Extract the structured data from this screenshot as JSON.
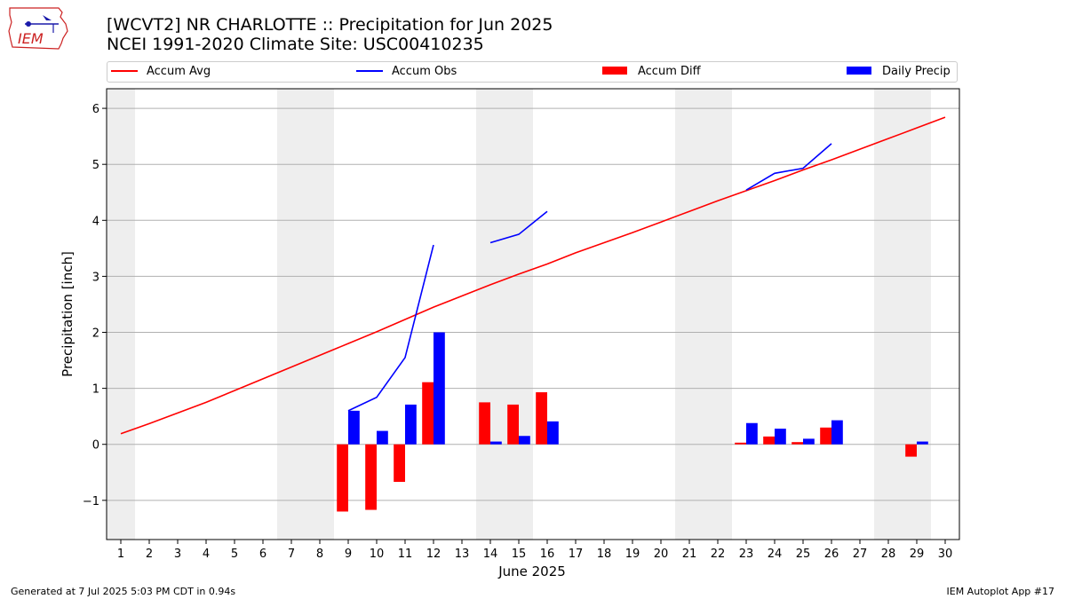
{
  "header": {
    "title_line1": "[WCVT2] NR CHARLOTTE :: Precipitation for Jun 2025",
    "title_line2": "NCEI 1991-2020 Climate Site: USC00410235",
    "logo_text": "IEM"
  },
  "footer": {
    "generated": "Generated at 7 Jul 2025 5:03 PM CDT in 0.94s",
    "app": "IEM Autoplot App #17"
  },
  "colors": {
    "avg": "#ff0000",
    "obs": "#0000ff",
    "diff": "#ff0000",
    "daily": "#0000ff",
    "weekend_shade": "#eeeeee",
    "grid": "#b0b0b0"
  },
  "chart_data": {
    "type": "bar",
    "xlabel": "June 2025",
    "ylabel": "Precipitation [inch]",
    "ylim": [
      -1.7,
      6.35
    ],
    "yticks": [
      -1,
      0,
      1,
      2,
      3,
      4,
      5,
      6
    ],
    "ytick_labels": [
      "−1",
      "0",
      "1",
      "2",
      "3",
      "4",
      "5",
      "6"
    ],
    "xlim": [
      0.5,
      30.5
    ],
    "days": [
      1,
      2,
      3,
      4,
      5,
      6,
      7,
      8,
      9,
      10,
      11,
      12,
      13,
      14,
      15,
      16,
      17,
      18,
      19,
      20,
      21,
      22,
      23,
      24,
      25,
      26,
      27,
      28,
      29,
      30
    ],
    "grid": true,
    "legend_position": "top",
    "weekend_spans": [
      [
        0.5,
        1.5
      ],
      [
        6.5,
        8.5
      ],
      [
        13.5,
        15.5
      ],
      [
        20.5,
        22.5
      ],
      [
        27.5,
        29.5
      ]
    ],
    "series": [
      {
        "name": "Accum Avg",
        "kind": "line",
        "x": [
          1,
          2,
          3,
          4,
          5,
          6,
          7,
          8,
          9,
          10,
          11,
          12,
          13,
          14,
          15,
          16,
          17,
          18,
          19,
          20,
          21,
          22,
          23,
          24,
          25,
          26,
          27,
          28,
          29,
          30
        ],
        "values": [
          0.19,
          0.37,
          0.56,
          0.75,
          0.96,
          1.17,
          1.38,
          1.59,
          1.8,
          2.01,
          2.23,
          2.45,
          2.65,
          2.85,
          3.04,
          3.22,
          3.42,
          3.6,
          3.78,
          3.97,
          4.16,
          4.35,
          4.53,
          4.71,
          4.9,
          5.08,
          5.27,
          5.46,
          5.65,
          5.84
        ]
      },
      {
        "name": "Accum Obs",
        "kind": "line",
        "segments": [
          {
            "x": [
              9,
              10,
              11,
              12
            ],
            "values": [
              0.6,
              0.84,
              1.55,
              3.56
            ]
          },
          {
            "x": [
              14,
              15,
              16
            ],
            "values": [
              3.6,
              3.75,
              4.16
            ]
          },
          {
            "x": [
              23,
              24,
              25,
              26
            ],
            "values": [
              4.54,
              4.84,
              4.93,
              5.37
            ]
          }
        ]
      },
      {
        "name": "Accum Diff",
        "kind": "bar",
        "x": [
          9,
          10,
          11,
          12,
          14,
          15,
          16,
          23,
          24,
          25,
          26,
          29
        ],
        "values": [
          -1.2,
          -1.17,
          -0.67,
          1.11,
          0.75,
          0.71,
          0.93,
          0.03,
          0.14,
          0.04,
          0.3,
          -0.22
        ]
      },
      {
        "name": "Daily Precip",
        "kind": "bar",
        "x": [
          9,
          10,
          11,
          12,
          14,
          15,
          16,
          23,
          24,
          25,
          26,
          29
        ],
        "values": [
          0.6,
          0.24,
          0.71,
          2.0,
          0.05,
          0.15,
          0.41,
          0.38,
          0.28,
          0.1,
          0.43,
          0.05
        ]
      }
    ]
  }
}
